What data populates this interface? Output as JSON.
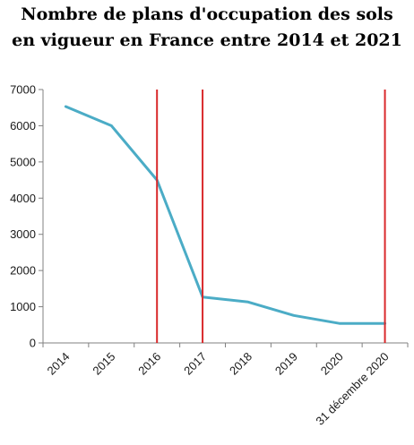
{
  "chart_data": {
    "type": "line",
    "title_lines": [
      "Nombre de plans d'occupation des sols",
      "en vigueur en France entre 2014 et 2021"
    ],
    "xlabel": "",
    "ylabel": "",
    "categories": [
      "2014",
      "2015",
      "2016",
      "2017",
      "2018",
      "2019",
      "2020",
      "31 décembre 2020"
    ],
    "series": [
      {
        "values": [
          6530,
          6000,
          4500,
          1270,
          1130,
          760,
          540,
          540
        ]
      }
    ],
    "ylim": [
      0,
      7000
    ],
    "yticks": [
      0,
      1000,
      2000,
      3000,
      4000,
      5000,
      6000,
      7000
    ],
    "vertical_markers": [
      "2016",
      "2017",
      "31 décembre 2020"
    ],
    "colors": {
      "line": "#4bacc6",
      "markers": "#d9292b",
      "axis": "#808080"
    },
    "grid": false,
    "legend": "none"
  }
}
